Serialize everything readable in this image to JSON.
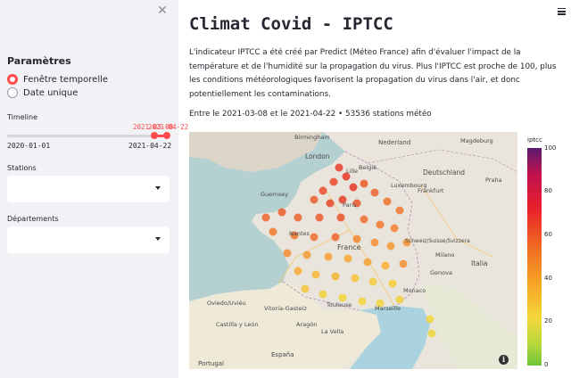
{
  "sidebar": {
    "close_icon": "close-icon",
    "heading": "Paramètres",
    "radio_options": [
      {
        "label": "Fenêtre temporelle",
        "selected": true
      },
      {
        "label": "Date unique",
        "selected": false
      }
    ],
    "timeline": {
      "label": "Timeline",
      "min": "2020-01-01",
      "max": "2021-04-22",
      "start_value": "2021-03-08",
      "end_value": "2021-04-22",
      "accent": "#ff4b4b"
    },
    "stations_label": "Stations",
    "stations_value": "",
    "departements_label": "Départements",
    "departements_value": ""
  },
  "header": {
    "menu_icon": "hamburger-menu-icon"
  },
  "main": {
    "title": "Climat Covid - IPTCC",
    "description": "L'indicateur IPTCC a été créé par Predict (Méteo France) afin d'évaluer l'impact de la température et de l'humidité sur la propagation du virus. Plus l'IPTCC est proche de 100, plus les conditions météorologiques favorisent la propagation du virus dans l'air, et donc potentiellement les contaminations.",
    "period": "Entre le 2021-03-08 et le 2021-04-22 • 53536 stations météo"
  },
  "map": {
    "labels": [
      "Birmingham",
      "Nederland",
      "Magdeburg",
      "London",
      "Lille",
      "België",
      "Deutschland",
      "Frankfurt",
      "Guernsey",
      "Paris",
      "Luxembourg",
      "Praha",
      "Nantes",
      "France",
      "Schweiz/Suisse/Svizzera",
      "Italia",
      "Milano",
      "Genova",
      "Monaco",
      "Toulouse",
      "Marseille",
      "Vitoria-Gasteiz",
      "Oviedo/Uviéu",
      "Castilla y León",
      "Aragón",
      "La Vella",
      "España",
      "Portugal"
    ],
    "info_icon": "info-icon",
    "colorbar": {
      "title": "iptcc",
      "ticks": [
        100,
        80,
        60,
        40,
        20,
        0
      ]
    }
  }
}
